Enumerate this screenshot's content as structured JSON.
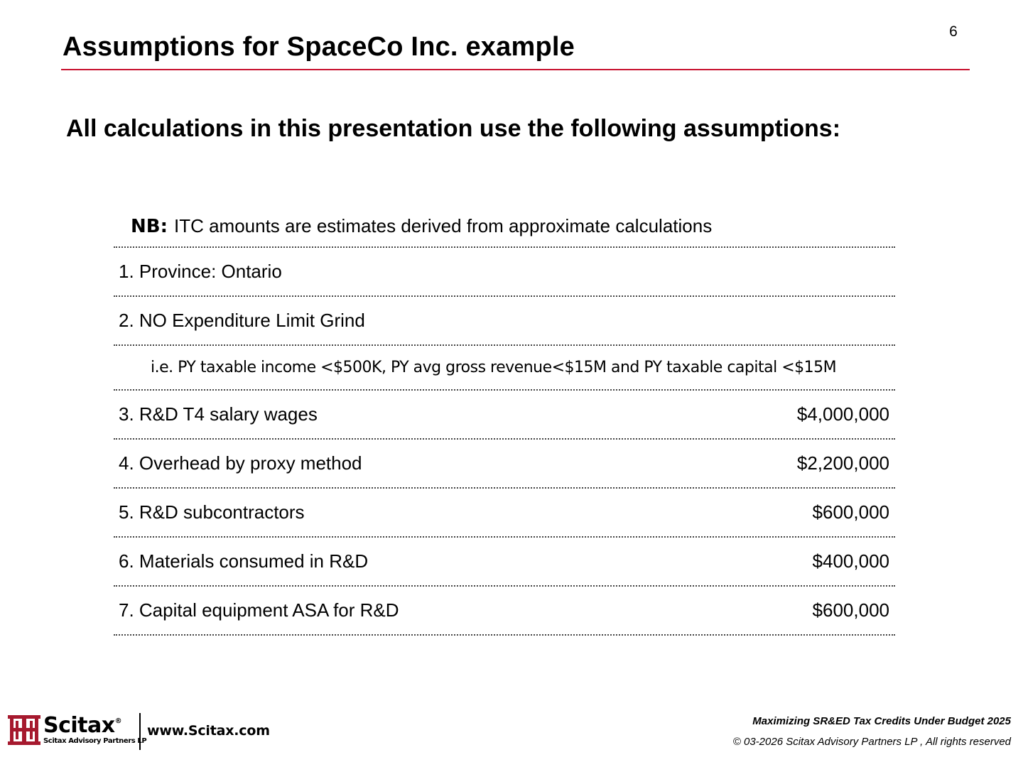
{
  "page_number": "6",
  "title": "Assumptions for SpaceCo Inc. example",
  "subtitle": "All calculations in this presentation use the following assumptions:",
  "nb": {
    "label": "NB:",
    "text": "ITC amounts are estimates derived from approximate calculations"
  },
  "rows": [
    {
      "label": "1. Province: Ontario",
      "value": ""
    },
    {
      "label": "2. NO Expenditure Limit Grind",
      "value": ""
    },
    {
      "label": "3. R&D T4 salary wages",
      "value": "$4,000,000"
    },
    {
      "label": "4. Overhead by proxy method",
      "value": "$2,200,000"
    },
    {
      "label": "5. R&D subcontractors",
      "value": "$600,000"
    },
    {
      "label": "6. Materials consumed in R&D",
      "value": "$400,000"
    },
    {
      "label": "7. Capital equipment ASA for R&D",
      "value": "$600,000"
    }
  ],
  "note": "i.e. PY taxable income <$500K, PY avg gross revenue<$15M and PY taxable capital <$15M",
  "footer": {
    "brand": "Scitax",
    "registered": "®",
    "brand_sub": "Scitax Advisory Partners LP",
    "url": "www.Scitax.com",
    "talk_title": "Maximizing SR&ED Tax Credits Under Budget 2025",
    "copyright": "© 03-2026 Scitax Advisory Partners LP , All rights reserved"
  },
  "colors": {
    "accent": "#c8102e",
    "logo": "#a6192e"
  }
}
